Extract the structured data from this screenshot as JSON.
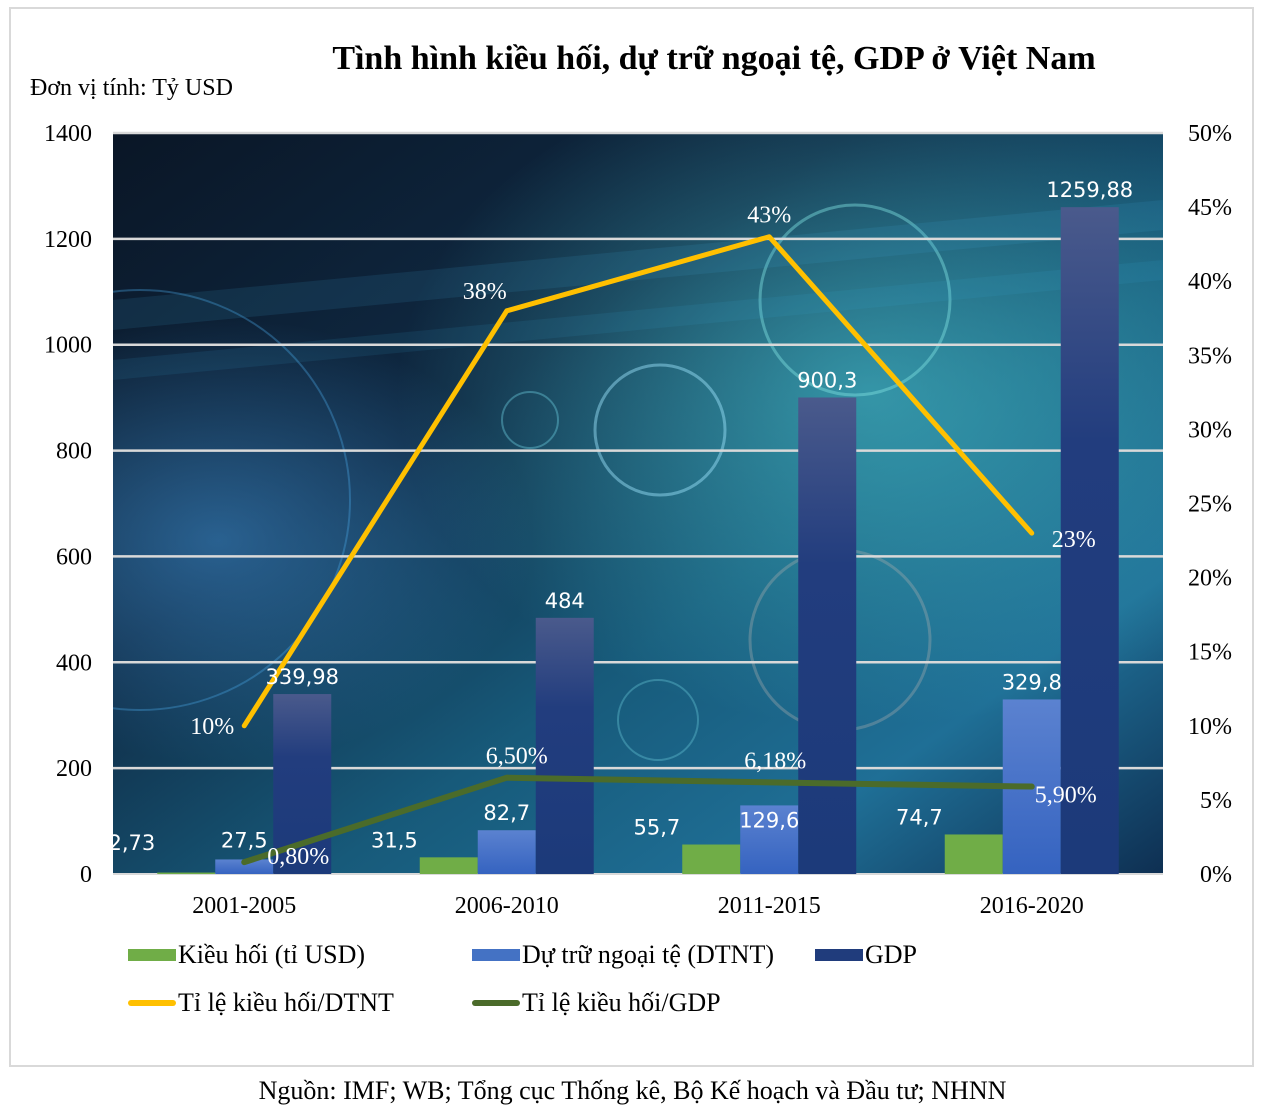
{
  "chart_data": {
    "type": "bar",
    "title": "Tình hình kiều hối, dự trữ ngoại tệ, GDP ở Việt Nam",
    "unit_label": "Đơn vị tính: Tỷ USD",
    "source": "Nguồn: IMF; WB; Tổng cục Thống kê, Bộ Kế hoạch và Đầu tư; NHNN",
    "categories": [
      "2001-2005",
      "2006-2010",
      "2011-2015",
      "2016-2020"
    ],
    "ylim": [
      0,
      1400
    ],
    "y2lim": [
      0,
      50
    ],
    "yticks": [
      "0",
      "200",
      "400",
      "600",
      "800",
      "1000",
      "1200",
      "1400"
    ],
    "y2ticks": [
      "0%",
      "5%",
      "10%",
      "15%",
      "20%",
      "25%",
      "30%",
      "35%",
      "40%",
      "45%",
      "50%"
    ],
    "grid": true,
    "legend_position": "bottom",
    "bar_series": [
      {
        "name": "Kiều hối (tỉ USD)",
        "color": "#70ad47",
        "values": [
          2.73,
          31.5,
          55.7,
          74.7
        ],
        "labels": [
          "2,73",
          "31,5",
          "55,7",
          "74,7"
        ]
      },
      {
        "name": "Dự trữ ngoại tệ (DTNT)",
        "color": "#4472c4",
        "values": [
          27.5,
          82.7,
          129.6,
          329.8
        ],
        "labels": [
          "27,5",
          "82,7",
          "129,6",
          "329,8"
        ]
      },
      {
        "name": "GDP",
        "color": "#203c7c",
        "values": [
          339.98,
          484,
          900.3,
          1259.88
        ],
        "labels": [
          "339,98",
          "484",
          "900,3",
          "1259,88"
        ]
      }
    ],
    "line_series": [
      {
        "name": "Tỉ lệ kiều hối/DTNT",
        "color": "#ffc000",
        "axis": "secondary",
        "values": [
          10,
          38,
          43,
          23
        ],
        "labels": [
          "10%",
          "38%",
          "43%",
          "23%"
        ]
      },
      {
        "name": "Tỉ lệ kiều hối/GDP",
        "color": "#4b6b2a",
        "axis": "secondary",
        "values": [
          0.8,
          6.5,
          6.18,
          5.9
        ],
        "labels": [
          "0,80%",
          "6,50%",
          "6,18%",
          "5,90%"
        ]
      }
    ]
  }
}
